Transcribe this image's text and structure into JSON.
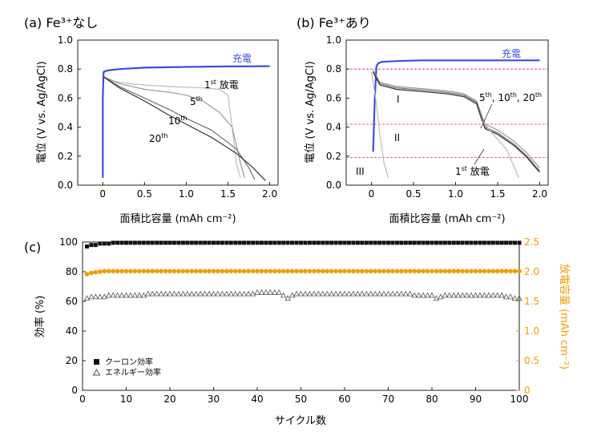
{
  "colors": {
    "charge": "#3b4fe0",
    "orange": "#f59a00",
    "coulomb": "#111111",
    "energy": "#555555",
    "dashed": "#e0303a",
    "discharge_1st": "#bbbbbb",
    "discharge_5th": "#9a9a9a",
    "discharge_10th": "#707070",
    "discharge_20th": "#333333"
  },
  "chart_data": [
    {
      "id": "a",
      "type": "line",
      "title": "(a) Fe³⁺なし",
      "xlabel": "面積比容量 (mAh cm⁻²)",
      "ylabel": "電位 (V vs. Ag/AgCl)",
      "xlim": [
        -0.3,
        2.1
      ],
      "ylim": [
        0.0,
        1.0
      ],
      "xticks": [
        "0",
        "0.5",
        "1.0",
        "1.5",
        "2.0"
      ],
      "xtick_values": [
        0,
        0.5,
        1.0,
        1.5,
        2.0
      ],
      "yticks": [
        "0.0",
        "0.2",
        "0.4",
        "0.6",
        "0.8",
        "1.0"
      ],
      "ytick_values": [
        0,
        0.2,
        0.4,
        0.6,
        0.8,
        1.0
      ],
      "annotations": {
        "charge": "充電",
        "first_discharge": {
          "num": "1",
          "sup": "st",
          "text": " 放電"
        },
        "fifth": {
          "num": "5",
          "sup": "th"
        },
        "tenth": {
          "num": "10",
          "sup": "th"
        },
        "twentieth": {
          "num": "20",
          "sup": "th"
        }
      },
      "series": [
        {
          "key": "charge",
          "x": [
            0.0,
            0.0,
            0.01,
            0.05,
            0.2,
            0.5,
            1.0,
            1.5,
            2.0
          ],
          "y": [
            0.05,
            0.6,
            0.78,
            0.79,
            0.8,
            0.81,
            0.815,
            0.818,
            0.82
          ]
        },
        {
          "key": "discharge_1st",
          "x": [
            0.0,
            0.1,
            0.3,
            0.5,
            0.8,
            1.0,
            1.2,
            1.4,
            1.5,
            1.55,
            1.6,
            1.65
          ],
          "y": [
            0.75,
            0.72,
            0.7,
            0.69,
            0.68,
            0.675,
            0.67,
            0.66,
            0.62,
            0.4,
            0.15,
            0.05
          ]
        },
        {
          "key": "discharge_5th",
          "x": [
            0.0,
            0.2,
            0.5,
            0.8,
            1.0,
            1.2,
            1.4,
            1.55,
            1.65,
            1.7
          ],
          "y": [
            0.75,
            0.7,
            0.66,
            0.64,
            0.62,
            0.58,
            0.5,
            0.4,
            0.15,
            0.05
          ]
        },
        {
          "key": "discharge_10th",
          "x": [
            0.0,
            0.2,
            0.5,
            0.8,
            1.0,
            1.3,
            1.6,
            1.75,
            1.82
          ],
          "y": [
            0.75,
            0.68,
            0.6,
            0.52,
            0.46,
            0.38,
            0.25,
            0.12,
            0.04
          ]
        },
        {
          "key": "discharge_20th",
          "x": [
            0.0,
            0.2,
            0.5,
            0.8,
            1.0,
            1.3,
            1.6,
            1.8,
            1.95
          ],
          "y": [
            0.75,
            0.67,
            0.58,
            0.48,
            0.42,
            0.33,
            0.22,
            0.12,
            0.03
          ]
        }
      ]
    },
    {
      "id": "b",
      "type": "line",
      "title": "(b) Fe³⁺あり",
      "xlabel": "面積比容量 (mAh cm⁻²)",
      "ylabel": "電位 (V vs. Ag/AgCl)",
      "xlim": [
        -0.3,
        2.1
      ],
      "ylim": [
        0.0,
        1.0
      ],
      "xticks": [
        "0",
        "0.5",
        "1.0",
        "1.5",
        "2.0"
      ],
      "xtick_values": [
        0,
        0.5,
        1.0,
        1.5,
        2.0
      ],
      "yticks": [
        "0.0",
        "0.2",
        "0.4",
        "0.6",
        "0.8",
        "1.0"
      ],
      "ytick_values": [
        0,
        0.2,
        0.4,
        0.6,
        0.8,
        1.0
      ],
      "reference_lines_y": [
        0.8,
        0.42,
        0.19
      ],
      "regions": [
        "I",
        "II",
        "III"
      ],
      "annotations": {
        "charge": "充電",
        "cycles": {
          "n1": "5",
          "s1": "th",
          "n2": ", 10",
          "s2": "th",
          "n3": ", 20",
          "s3": "th"
        },
        "first_discharge": {
          "num": "1",
          "sup": "st",
          "text": " 放電"
        }
      },
      "series": [
        {
          "key": "charge",
          "x": [
            0.02,
            0.04,
            0.06,
            0.08,
            0.12,
            0.3,
            0.6,
            1.0,
            1.5,
            2.0
          ],
          "y": [
            0.23,
            0.6,
            0.82,
            0.84,
            0.85,
            0.855,
            0.86,
            0.86,
            0.86,
            0.86
          ]
        },
        {
          "key": "discharge_1st",
          "x": [
            0.0,
            0.05,
            0.1,
            0.15,
            0.2
          ],
          "y": [
            0.78,
            0.6,
            0.35,
            0.15,
            0.05
          ]
        },
        {
          "key": "discharge_5th",
          "x": [
            0.02,
            0.1,
            0.3,
            0.6,
            0.9,
            1.1,
            1.25,
            1.3,
            1.35,
            1.5,
            1.7,
            1.85,
            1.95,
            2.0
          ],
          "y": [
            0.79,
            0.71,
            0.68,
            0.665,
            0.65,
            0.63,
            0.58,
            0.5,
            0.42,
            0.38,
            0.3,
            0.22,
            0.15,
            0.12
          ]
        },
        {
          "key": "discharge_10th",
          "x": [
            0.02,
            0.1,
            0.3,
            0.6,
            0.9,
            1.1,
            1.25,
            1.3,
            1.35,
            1.5,
            1.7,
            1.85,
            1.95,
            2.0
          ],
          "y": [
            0.79,
            0.7,
            0.67,
            0.655,
            0.64,
            0.62,
            0.57,
            0.48,
            0.4,
            0.36,
            0.28,
            0.2,
            0.13,
            0.1
          ]
        },
        {
          "key": "discharge_20th",
          "x": [
            0.02,
            0.1,
            0.3,
            0.6,
            0.9,
            1.1,
            1.25,
            1.3,
            1.35,
            1.5,
            1.7,
            1.85,
            1.95,
            2.0
          ],
          "y": [
            0.78,
            0.69,
            0.66,
            0.645,
            0.63,
            0.61,
            0.56,
            0.47,
            0.39,
            0.35,
            0.27,
            0.19,
            0.12,
            0.09
          ]
        },
        {
          "key": "discharge_1st_tail",
          "x": [
            1.3,
            1.45,
            1.6,
            1.68,
            1.75
          ],
          "y": [
            0.45,
            0.35,
            0.25,
            0.15,
            0.05
          ]
        }
      ]
    },
    {
      "id": "c",
      "type": "scatter",
      "title": "(c)",
      "xlabel": "サイクル数",
      "ylabel_left": "効率 (%)",
      "ylabel_right": "放電容量 (mAh cm⁻²)",
      "xlim": [
        0,
        100
      ],
      "ylim_left": [
        0,
        100
      ],
      "ylim_right": [
        0,
        2.5
      ],
      "xticks": [
        "0",
        "10",
        "20",
        "30",
        "40",
        "50",
        "60",
        "70",
        "80",
        "90",
        "100"
      ],
      "xtick_values": [
        0,
        10,
        20,
        30,
        40,
        50,
        60,
        70,
        80,
        90,
        100
      ],
      "yticks_left": [
        "0",
        "20",
        "40",
        "60",
        "80",
        "100"
      ],
      "ytick_values_left": [
        0,
        20,
        40,
        60,
        80,
        100
      ],
      "yticks_right": [
        "0",
        "0.5",
        "1.0",
        "1.5",
        "2.0",
        "2.5"
      ],
      "ytick_values_right": [
        0,
        0.5,
        1.0,
        1.5,
        2.0,
        2.5
      ],
      "legend_position": "bottom-left",
      "series": [
        {
          "name": "クーロン効率",
          "axis": "left",
          "marker": "square-filled",
          "x_start": 1,
          "x_end": 100,
          "values_early": [
            97,
            98,
            98,
            99,
            99,
            99
          ],
          "value_steady": 99.5
        },
        {
          "name": "エネルギー効率",
          "axis": "left",
          "marker": "triangle-open",
          "x_start": 1,
          "x_end": 100,
          "values": [
            62,
            63,
            63,
            63,
            63,
            64,
            64,
            64,
            64,
            64,
            64,
            64,
            64,
            64,
            65,
            65,
            65,
            65,
            65,
            65,
            65,
            65,
            65,
            65,
            65,
            65,
            65,
            65,
            65,
            65,
            65,
            65,
            65,
            65,
            65,
            65,
            65,
            65,
            65,
            66,
            66,
            66,
            66,
            66,
            66,
            64,
            62,
            64,
            65,
            65,
            65,
            65,
            65,
            65,
            65,
            65,
            65,
            65,
            65,
            65,
            65,
            65,
            65,
            65,
            65,
            65,
            65,
            65,
            65,
            65,
            65,
            65,
            65,
            65,
            65,
            64,
            64,
            64,
            64,
            64,
            62,
            63,
            64,
            64,
            64,
            64,
            64,
            64,
            64,
            64,
            64,
            64,
            64,
            64,
            64,
            64,
            63,
            63,
            62,
            62
          ]
        },
        {
          "name": "放電容量",
          "axis": "right",
          "marker": "circle-filled",
          "x_start": 1,
          "x_end": 100,
          "values_early": [
            1.96,
            1.98,
            1.99,
            2.0
          ],
          "value_steady": 2.01
        }
      ]
    }
  ]
}
